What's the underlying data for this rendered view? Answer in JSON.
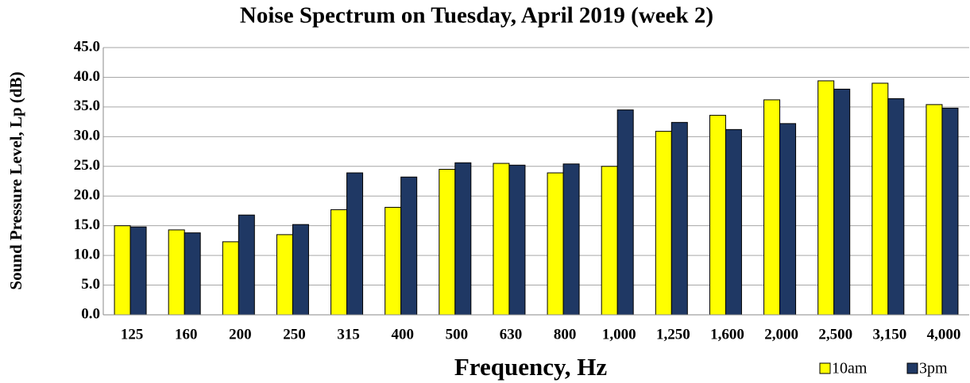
{
  "chart_data": {
    "type": "bar",
    "title": "Noise Spectrum on Tuesday, April 2019 (week 2)",
    "x_label": "Frequency, Hz",
    "y_label": "Sound Pressure Level, Lp (dB)",
    "categories": [
      "125",
      "160",
      "200",
      "250",
      "315",
      "400",
      "500",
      "630",
      "800",
      "1,000",
      "1,250",
      "1,600",
      "2,000",
      "2,500",
      "3,150",
      "4,000"
    ],
    "series": [
      {
        "name": "10am",
        "color": "#ffff00",
        "values": [
          15.0,
          14.3,
          12.3,
          13.5,
          17.7,
          18.1,
          24.5,
          25.5,
          23.9,
          25.0,
          30.9,
          33.6,
          36.2,
          39.4,
          39.0,
          35.4
        ]
      },
      {
        "name": "3pm",
        "color": "#1f3864",
        "values": [
          14.8,
          13.8,
          16.8,
          15.2,
          23.9,
          23.2,
          25.6,
          25.2,
          25.4,
          34.5,
          32.4,
          31.2,
          32.2,
          38.0,
          36.4,
          34.8
        ]
      }
    ],
    "ylim": [
      0,
      45
    ],
    "yticks": [
      {
        "value": 0,
        "label": "0.0"
      },
      {
        "value": 5,
        "label": "5.0"
      },
      {
        "value": 10,
        "label": "10.0"
      },
      {
        "value": 15,
        "label": "15.0"
      },
      {
        "value": 20,
        "label": "20.0"
      },
      {
        "value": 25,
        "label": "25.0"
      },
      {
        "value": 30,
        "label": "30.0"
      },
      {
        "value": 35,
        "label": "35.0"
      },
      {
        "value": 40,
        "label": "40.0"
      },
      {
        "value": 45,
        "label": "45.0"
      }
    ],
    "grid": true,
    "legend": "bottom-right"
  }
}
